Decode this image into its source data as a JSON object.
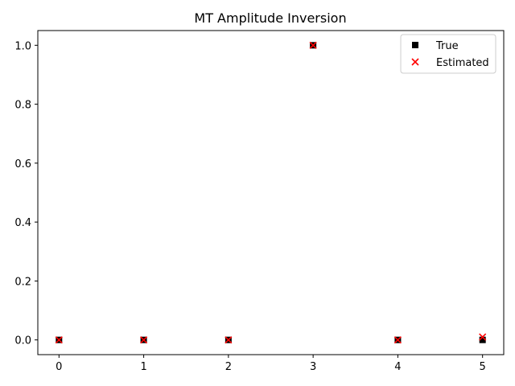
{
  "chart_data": {
    "type": "scatter",
    "title": "MT Amplitude Inversion",
    "xlabel": "",
    "ylabel": "",
    "xlim": [
      -0.25,
      5.25
    ],
    "ylim": [
      -0.05,
      1.05
    ],
    "xticks": [
      0,
      1,
      2,
      3,
      4,
      5
    ],
    "yticks": [
      0.0,
      0.2,
      0.4,
      0.6,
      0.8,
      1.0
    ],
    "xtick_labels": [
      "0",
      "1",
      "2",
      "3",
      "4",
      "5"
    ],
    "ytick_labels": [
      "0.0",
      "0.2",
      "0.4",
      "0.6",
      "0.8",
      "1.0"
    ],
    "grid": false,
    "legend_position": "top-right",
    "series": [
      {
        "name": "True",
        "marker": "square",
        "color": "#000000",
        "x": [
          0,
          1,
          2,
          3,
          4,
          5
        ],
        "y": [
          0.0,
          0.0,
          0.0,
          1.0,
          0.0,
          0.0
        ]
      },
      {
        "name": "Estimated",
        "marker": "x",
        "color": "#ff0000",
        "x": [
          0,
          1,
          2,
          3,
          4,
          5
        ],
        "y": [
          0.0,
          0.0,
          0.0,
          1.0,
          0.0,
          0.01
        ]
      }
    ]
  }
}
